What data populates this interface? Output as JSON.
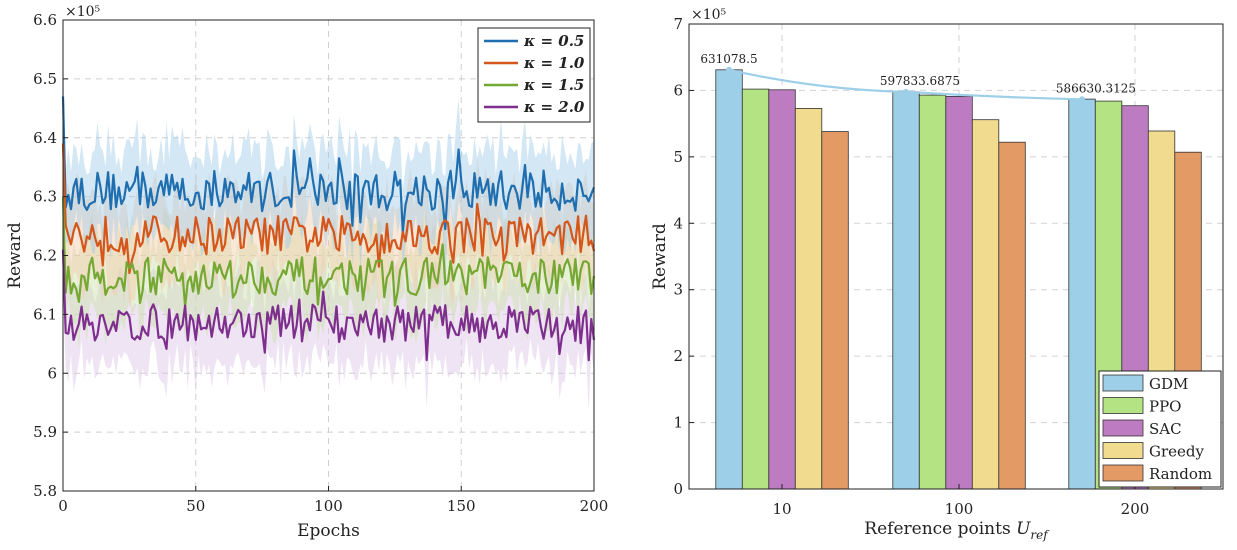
{
  "chart_data": [
    {
      "type": "line",
      "title": "",
      "xlabel": "Epochs",
      "ylabel": "Reward",
      "exponent_label": "×10⁵",
      "xlim": [
        0,
        200
      ],
      "ylim": [
        5.8,
        6.6
      ],
      "xticks": [
        0,
        50,
        100,
        150,
        200
      ],
      "yticks": [
        5.8,
        5.9,
        6.0,
        6.1,
        6.2,
        6.3,
        6.4,
        6.5,
        6.6
      ],
      "ytick_labels": [
        "5.8",
        "5.9",
        "6",
        "6.1",
        "6.2",
        "6.3",
        "6.4",
        "6.5",
        "6.6"
      ],
      "grid": true,
      "legend_position": "top-right",
      "band_halfwidth": 0.07,
      "start_values": [
        6.47,
        6.39,
        6.3,
        6.21
      ],
      "series": [
        {
          "name": "κ = 0.5",
          "legend": "κ = 0.5",
          "color": "#1f6fb0",
          "band_color": "#9ec9e8",
          "mean": 6.31,
          "amplitude": 0.035,
          "min": 6.22,
          "max": 6.38
        },
        {
          "name": "κ = 1.0",
          "legend": "κ = 1.0",
          "color": "#d4561a",
          "band_color": "#f2caa8",
          "mean": 6.235,
          "amplitude": 0.033,
          "min": 6.15,
          "max": 6.31
        },
        {
          "name": "κ = 1.5",
          "legend": "κ = 1.5",
          "color": "#75a832",
          "band_color": "#c9dfa6",
          "mean": 6.165,
          "amplitude": 0.032,
          "min": 6.08,
          "max": 6.25
        },
        {
          "name": "κ = 2.0",
          "legend": "κ = 2.0",
          "color": "#7e2f8e",
          "band_color": "#dcc4e4",
          "mean": 6.085,
          "amplitude": 0.032,
          "min": 5.97,
          "max": 6.16
        }
      ]
    },
    {
      "type": "bar",
      "title": "",
      "xlabel": "Reference points",
      "xlabel_symbol": "U",
      "xlabel_subscript": "ref",
      "ylabel": "Reward",
      "exponent_label": "×10⁵",
      "ylim": [
        0,
        7
      ],
      "yticks": [
        0,
        1,
        2,
        3,
        4,
        5,
        6,
        7
      ],
      "grid": true,
      "legend_position": "bottom-right",
      "categories": [
        "10",
        "100",
        "200"
      ],
      "series": [
        {
          "name": "GDM",
          "color": "#9dcfe8",
          "values": [
            6.31,
            5.98,
            5.87
          ]
        },
        {
          "name": "PPO",
          "color": "#b4e383",
          "values": [
            6.02,
            5.93,
            5.84
          ]
        },
        {
          "name": "SAC",
          "color": "#bd7cc1",
          "values": [
            6.01,
            5.91,
            5.77
          ]
        },
        {
          "name": "Greedy",
          "color": "#f0db8e",
          "values": [
            5.73,
            5.56,
            5.39
          ]
        },
        {
          "name": "Random",
          "color": "#e49a64",
          "values": [
            5.38,
            5.22,
            5.07
          ]
        }
      ],
      "trend_line": {
        "color": "#9dcfe8",
        "values": [
          6.310785,
          5.978336875,
          5.866303125
        ]
      },
      "annotations": [
        "631078.5",
        "597833.6875",
        "586630.3125"
      ]
    }
  ]
}
